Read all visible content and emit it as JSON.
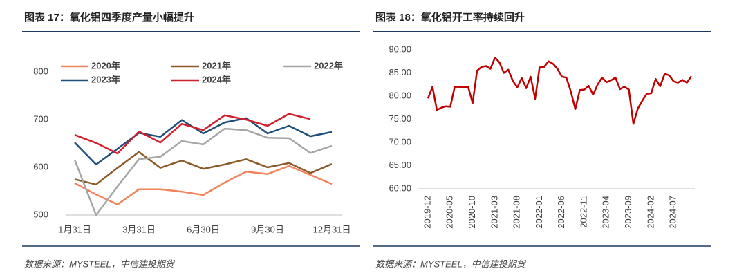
{
  "chart_data": [
    {
      "type": "line",
      "title": "图表 17：氧化铝四季度产量小幅提升",
      "source": "数据来源：MYSTEEL，中信建投期货",
      "categories": [
        "1月31日",
        null,
        null,
        "3月31日",
        null,
        null,
        "6月30日",
        null,
        null,
        "9月30日",
        null,
        null,
        "12月31日"
      ],
      "ylim": [
        500,
        800
      ],
      "yticks": [
        500,
        600,
        700,
        800
      ],
      "series": [
        {
          "name": "2020年",
          "color": "#f0845c",
          "values": [
            567,
            543,
            522,
            554,
            554,
            549,
            542,
            568,
            591,
            586,
            603,
            584,
            565
          ]
        },
        {
          "name": "2021年",
          "color": "#8b5a2b",
          "values": [
            575,
            564,
            599,
            632,
            599,
            614,
            597,
            606,
            617,
            600,
            609,
            588,
            607
          ]
        },
        {
          "name": "2022年",
          "color": "#a6a6a6",
          "values": [
            616,
            500,
            560,
            617,
            622,
            655,
            648,
            681,
            678,
            662,
            661,
            630,
            645
          ]
        },
        {
          "name": "2023年",
          "color": "#1f4e79",
          "values": [
            652,
            606,
            639,
            672,
            664,
            699,
            671,
            694,
            703,
            671,
            687,
            665,
            674
          ]
        },
        {
          "name": "2024年",
          "color": "#d0202d",
          "values": [
            668,
            651,
            629,
            675,
            652,
            691,
            678,
            709,
            700,
            687,
            712,
            701,
            null
          ]
        }
      ]
    },
    {
      "type": "line",
      "title": "图表 18：氧化铝开工率持续回升",
      "source": "数据来源：MYSTEEL，中信建投期货",
      "categories": [
        "2019-12",
        null,
        null,
        null,
        null,
        "2020-05",
        null,
        null,
        null,
        null,
        "2020-10",
        null,
        null,
        null,
        null,
        "2021-03",
        null,
        null,
        null,
        null,
        "2021-08",
        null,
        null,
        null,
        null,
        "2022-01",
        null,
        null,
        null,
        null,
        "2022-06",
        null,
        null,
        null,
        null,
        "2022-11",
        null,
        null,
        null,
        null,
        "2023-04",
        null,
        null,
        null,
        null,
        "2023-09",
        null,
        null,
        null,
        null,
        "2024-02",
        null,
        null,
        null,
        null,
        "2024-07",
        null,
        null,
        null,
        null
      ],
      "ylim": [
        60,
        90
      ],
      "yticks": [
        {
          "value": 60,
          "label": "60.00"
        },
        {
          "value": 65,
          "label": "65.00"
        },
        {
          "value": 70,
          "label": "70.00"
        },
        {
          "value": 75,
          "label": "75.00"
        },
        {
          "value": 80,
          "label": "80.00"
        },
        {
          "value": 85,
          "label": "85.00"
        },
        {
          "value": 90,
          "label": "90.00"
        }
      ],
      "series": [
        {
          "name": "开工率",
          "color": "#c00000",
          "values": [
            79.5,
            82,
            77,
            77.5,
            77.8,
            77.7,
            82,
            82,
            81.9,
            82,
            78.5,
            85.5,
            86.3,
            86.5,
            85.9,
            88.3,
            87.3,
            85,
            85.7,
            83.3,
            81.9,
            83.9,
            81.7,
            84.2,
            79.4,
            86.2,
            86.3,
            87.5,
            87,
            85.9,
            84.2,
            84,
            81,
            77.2,
            81.3,
            81.4,
            82.2,
            80.3,
            82.5,
            84,
            83,
            83.4,
            84,
            81.5,
            82,
            81.4,
            74,
            77.3,
            79,
            80.5,
            80.6,
            83.7,
            82.1,
            84.8,
            84.5,
            83.2,
            82.9,
            83.5,
            82.9,
            84.3
          ]
        }
      ]
    }
  ]
}
